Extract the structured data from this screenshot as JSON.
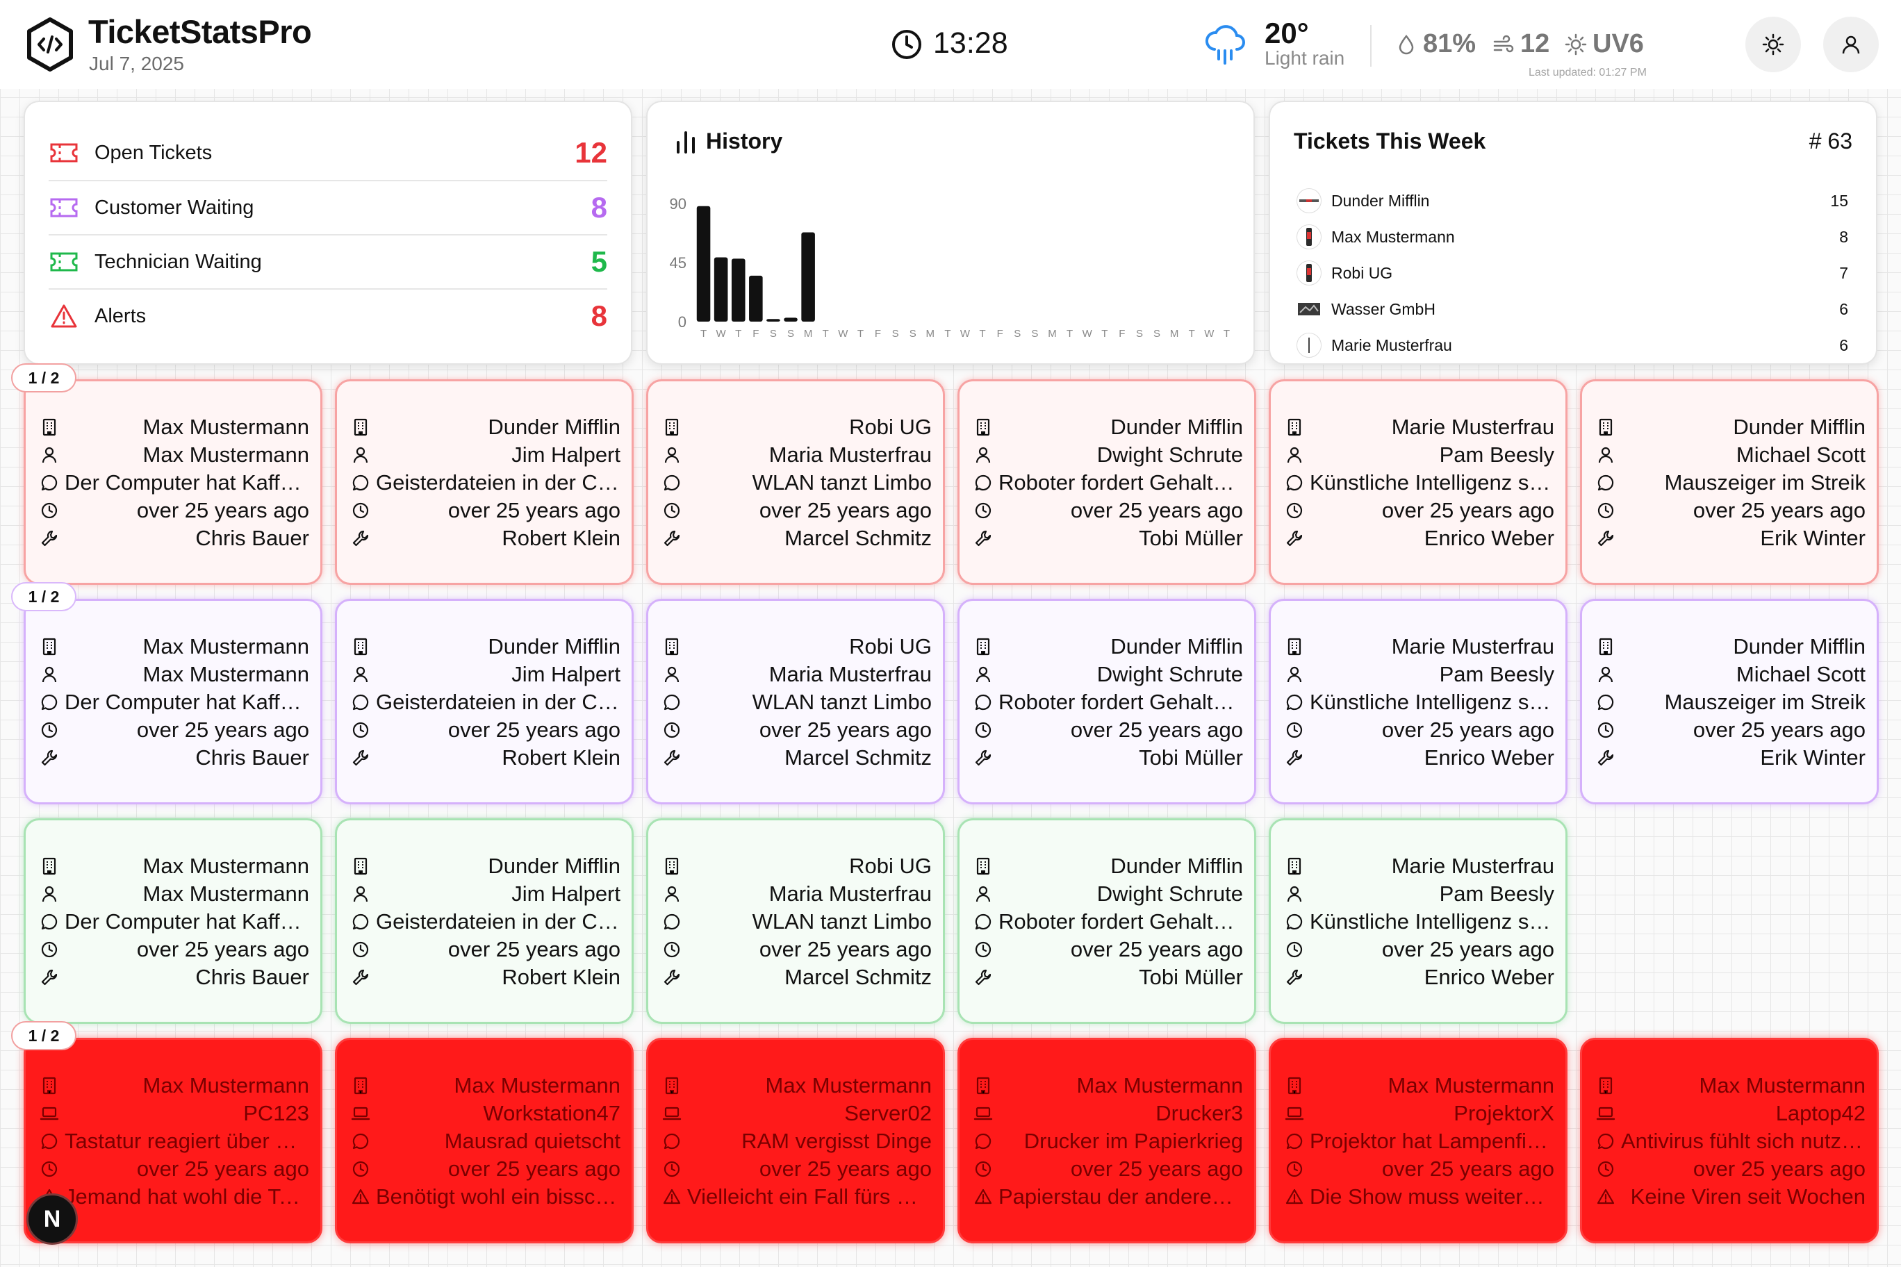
{
  "header": {
    "title": "TicketStatsPro",
    "date": "Jul 7, 2025",
    "time": "13:28",
    "weather": {
      "temp": "20°",
      "condition": "Light rain",
      "humidity": "81%",
      "wind": "12",
      "uv": "UV6"
    },
    "last_updated": "Last updated: 01:27 PM",
    "settings_icon": "sun-icon",
    "user_icon": "user-icon"
  },
  "status": [
    {
      "label": "Open Tickets",
      "count": "12",
      "color": "#e8343a",
      "icon": "ticket-icon"
    },
    {
      "label": "Customer Waiting",
      "count": "8",
      "color": "#b66af0",
      "icon": "ticket-icon"
    },
    {
      "label": "Technician Waiting",
      "count": "5",
      "color": "#1fb84b",
      "icon": "ticket-icon"
    },
    {
      "label": "Alerts",
      "count": "8",
      "color": "#e8343a",
      "icon": "alert-triangle-icon"
    }
  ],
  "history": {
    "title": "History",
    "chart_data": {
      "type": "bar",
      "categories": [
        "T",
        "W",
        "T",
        "F",
        "S",
        "S",
        "M",
        "T",
        "W",
        "T",
        "F",
        "S",
        "S",
        "M",
        "T",
        "W",
        "T",
        "F",
        "S",
        "S",
        "M",
        "T",
        "W",
        "T",
        "F",
        "S",
        "S",
        "M",
        "T",
        "W",
        "T"
      ],
      "values": [
        88,
        49,
        48,
        35,
        2,
        3,
        68,
        0,
        0,
        0,
        0,
        0,
        0,
        0,
        0,
        0,
        0,
        0,
        0,
        0,
        0,
        0,
        0,
        0,
        0,
        0,
        0,
        0,
        0,
        0,
        0
      ],
      "yticks": [
        "90",
        "45",
        "0"
      ],
      "ylim": [
        0,
        90
      ],
      "bar_color": "#111111"
    }
  },
  "week": {
    "title": "Tickets This Week",
    "total": "# 63",
    "rows": [
      {
        "name": "Dunder Mifflin",
        "count": "15"
      },
      {
        "name": "Max Mustermann",
        "count": "8"
      },
      {
        "name": "Robi UG",
        "count": "7"
      },
      {
        "name": "Wasser GmbH",
        "count": "6"
      },
      {
        "name": "Marie Musterfrau",
        "count": "6"
      }
    ]
  },
  "pagination": [
    "1 / 2",
    "1 / 2",
    "1 / 2"
  ],
  "ticket_rows": [
    {
      "variant": "red",
      "cards": [
        [
          "Max Mustermann",
          "Max Mustermann",
          "Der Computer hat Kaffeedurst",
          "over 25 years ago",
          "Chris Bauer"
        ],
        [
          "Dunder Mifflin",
          "Jim Halpert",
          "Geisterdateien in der Cloud",
          "over 25 years ago",
          "Robert Klein"
        ],
        [
          "Robi UG",
          "Maria Musterfrau",
          "WLAN tanzt Limbo",
          "over 25 years ago",
          "Marcel Schmitz"
        ],
        [
          "Dunder Mifflin",
          "Dwight Schrute",
          "Roboter fordert Gehaltserhöhung",
          "over 25 years ago",
          "Tobi Müller"
        ],
        [
          "Marie Musterfrau",
          "Pam Beesly",
          "Künstliche Intelligenz streikt",
          "over 25 years ago",
          "Enrico Weber"
        ],
        [
          "Dunder Mifflin",
          "Michael Scott",
          "Mauszeiger im Streik",
          "over 25 years ago",
          "Erik Winter"
        ]
      ]
    },
    {
      "variant": "purple",
      "cards": [
        [
          "Max Mustermann",
          "Max Mustermann",
          "Der Computer hat Kaffeedurst",
          "over 25 years ago",
          "Chris Bauer"
        ],
        [
          "Dunder Mifflin",
          "Jim Halpert",
          "Geisterdateien in der Cloud",
          "over 25 years ago",
          "Robert Klein"
        ],
        [
          "Robi UG",
          "Maria Musterfrau",
          "WLAN tanzt Limbo",
          "over 25 years ago",
          "Marcel Schmitz"
        ],
        [
          "Dunder Mifflin",
          "Dwight Schrute",
          "Roboter fordert Gehaltserhöhung",
          "over 25 years ago",
          "Tobi Müller"
        ],
        [
          "Marie Musterfrau",
          "Pam Beesly",
          "Künstliche Intelligenz streikt",
          "over 25 years ago",
          "Enrico Weber"
        ],
        [
          "Dunder Mifflin",
          "Michael Scott",
          "Mauszeiger im Streik",
          "over 25 years ago",
          "Erik Winter"
        ]
      ]
    },
    {
      "variant": "green",
      "cards": [
        [
          "Max Mustermann",
          "Max Mustermann",
          "Der Computer hat Kaffeedurst",
          "over 25 years ago",
          "Chris Bauer"
        ],
        [
          "Dunder Mifflin",
          "Jim Halpert",
          "Geisterdateien in der Cloud",
          "over 25 years ago",
          "Robert Klein"
        ],
        [
          "Robi UG",
          "Maria Musterfrau",
          "WLAN tanzt Limbo",
          "over 25 years ago",
          "Marcel Schmitz"
        ],
        [
          "Dunder Mifflin",
          "Dwight Schrute",
          "Roboter fordert Gehaltserhöhung",
          "over 25 years ago",
          "Tobi Müller"
        ],
        [
          "Marie Musterfrau",
          "Pam Beesly",
          "Künstliche Intelligenz streikt",
          "over 25 years ago",
          "Enrico Weber"
        ]
      ]
    },
    {
      "variant": "alert",
      "cards": [
        [
          "Max Mustermann",
          "PC123",
          "Tastatur reagiert über Gedanken",
          "over 25 years ago",
          "Jemand hat wohl die Tasten vertauscht"
        ],
        [
          "Max Mustermann",
          "Workstation47",
          "Mausrad quietscht",
          "over 25 years ago",
          "Benötigt wohl ein bisschen Öl"
        ],
        [
          "Max Mustermann",
          "Server02",
          "RAM vergisst Dinge",
          "over 25 years ago",
          "Vielleicht ein Fall fürs Gedächtnistraining"
        ],
        [
          "Max Mustermann",
          "Drucker3",
          "Drucker im Papierkrieg",
          "over 25 years ago",
          "Papierstau der anderen Art"
        ],
        [
          "Max Mustermann",
          "ProjektorX",
          "Projektor hat Lampenfieber",
          "over 25 years ago",
          "Die Show muss weitergehen"
        ],
        [
          "Max Mustermann",
          "Laptop42",
          "Antivirus fühlt sich nutzlos",
          "over 25 years ago",
          "Keine Viren seit Wochen"
        ]
      ]
    }
  ],
  "next_button": "N"
}
